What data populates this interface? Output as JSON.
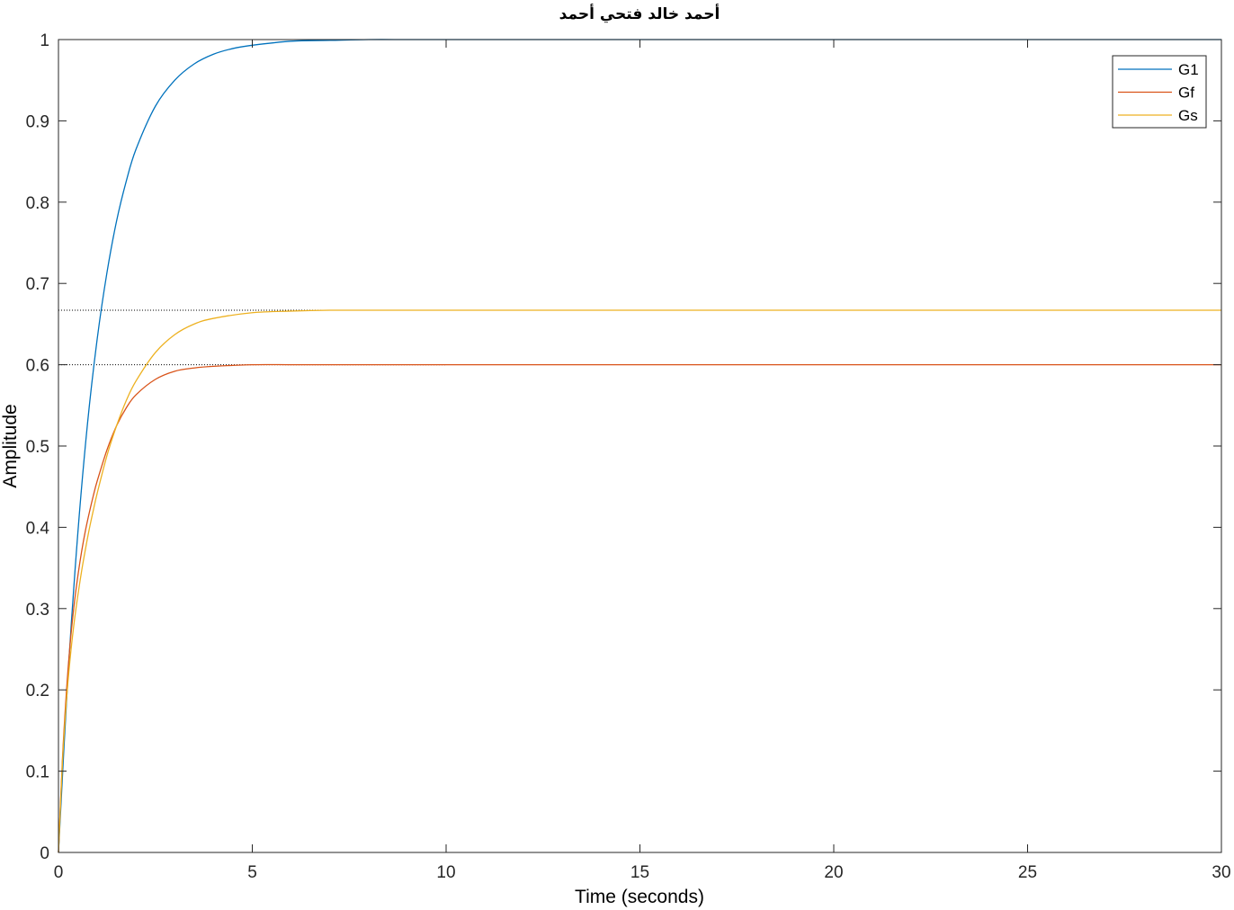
{
  "chart_data": {
    "type": "line",
    "title": "أحمد خالد فتحي أحمد",
    "xlabel": "Time (seconds)",
    "ylabel": "Amplitude",
    "xlim": [
      0,
      30
    ],
    "ylim": [
      0,
      1
    ],
    "xticks": [
      0,
      5,
      10,
      15,
      20,
      25,
      30
    ],
    "yticks": [
      0,
      0.1,
      0.2,
      0.3,
      0.4,
      0.5,
      0.6,
      0.7,
      0.8,
      0.9,
      1
    ],
    "grid": false,
    "legend_position": "top-right",
    "steady_state_references": [
      1,
      0.6,
      0.667
    ],
    "series": [
      {
        "name": "G1",
        "color": "#0072BD",
        "x": [
          0,
          0.25,
          0.5,
          0.75,
          1,
          1.25,
          1.5,
          1.75,
          2,
          2.5,
          3,
          3.5,
          4,
          4.5,
          5,
          6,
          7,
          8,
          9,
          10,
          12,
          15,
          20,
          25,
          30
        ],
        "y": [
          0,
          0.221,
          0.393,
          0.528,
          0.632,
          0.713,
          0.777,
          0.826,
          0.865,
          0.918,
          0.95,
          0.97,
          0.982,
          0.989,
          0.993,
          0.998,
          0.999,
          1,
          1,
          1,
          1,
          1,
          1,
          1,
          1
        ]
      },
      {
        "name": "Gf",
        "color": "#D95319",
        "x": [
          0,
          0.1,
          0.2,
          0.3,
          0.4,
          0.5,
          0.6,
          0.7,
          0.8,
          0.9,
          1,
          1.25,
          1.5,
          1.75,
          2,
          2.5,
          3,
          3.5,
          4,
          5,
          6,
          7,
          8,
          10,
          15,
          20,
          25,
          30
        ],
        "y": [
          0,
          0.112,
          0.194,
          0.256,
          0.303,
          0.34,
          0.371,
          0.397,
          0.419,
          0.439,
          0.457,
          0.495,
          0.525,
          0.547,
          0.563,
          0.582,
          0.592,
          0.596,
          0.598,
          0.6,
          0.6,
          0.6,
          0.6,
          0.6,
          0.6,
          0.6,
          0.6,
          0.6
        ]
      },
      {
        "name": "Gs",
        "color": "#EDB120",
        "x": [
          0,
          0.1,
          0.2,
          0.3,
          0.4,
          0.5,
          0.6,
          0.7,
          0.8,
          0.9,
          1,
          1.25,
          1.5,
          1.75,
          2,
          2.5,
          3,
          3.5,
          4,
          5,
          6,
          7,
          8,
          10,
          15,
          20,
          25,
          30
        ],
        "y": [
          0,
          0.108,
          0.183,
          0.238,
          0.281,
          0.316,
          0.347,
          0.374,
          0.399,
          0.421,
          0.442,
          0.488,
          0.525,
          0.556,
          0.58,
          0.615,
          0.637,
          0.65,
          0.657,
          0.664,
          0.666,
          0.667,
          0.667,
          0.667,
          0.667,
          0.667,
          0.667,
          0.667
        ]
      }
    ]
  }
}
